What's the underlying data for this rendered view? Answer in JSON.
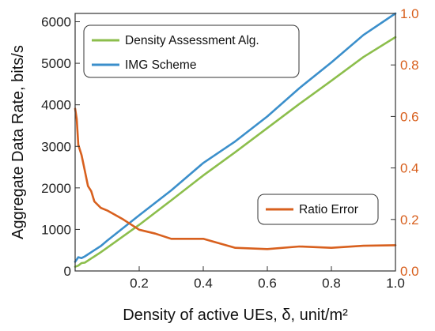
{
  "chart_data": {
    "type": "line",
    "xlabel": "Density of active UEs, δ, unit/m²",
    "ylabel": "Aggregate Data Rate, bits/s",
    "xlim": [
      0,
      1
    ],
    "ylim_left": [
      0,
      6200
    ],
    "ylim_right": [
      0,
      1.0
    ],
    "x_ticks": [
      "0.2",
      "0.4",
      "0.6",
      "0.8",
      "1.0"
    ],
    "y_left_ticks": [
      "0",
      "1000",
      "2000",
      "3000",
      "4000",
      "5000",
      "6000"
    ],
    "y_right_ticks": [
      "0.0",
      "0.2",
      "0.4",
      "0.6",
      "0.8",
      "1.0"
    ],
    "grid": false,
    "series": [
      {
        "name": "Density Assessment Alg.",
        "axis": "left",
        "color": "#8cbe4c",
        "x": [
          0.0,
          0.01,
          0.02,
          0.03,
          0.04,
          0.05,
          0.06,
          0.08,
          0.1,
          0.2,
          0.3,
          0.4,
          0.5,
          0.6,
          0.7,
          0.8,
          0.9,
          1.0
        ],
        "y": [
          100,
          130,
          190,
          200,
          250,
          300,
          350,
          450,
          560,
          1110,
          1700,
          2300,
          2860,
          3440,
          4020,
          4580,
          5150,
          5630
        ]
      },
      {
        "name": "IMG Scheme",
        "axis": "left",
        "color": "#3b8fcb",
        "x": [
          0.0,
          0.01,
          0.02,
          0.03,
          0.04,
          0.05,
          0.06,
          0.08,
          0.1,
          0.2,
          0.3,
          0.4,
          0.5,
          0.6,
          0.7,
          0.8,
          0.9,
          1.0
        ],
        "y": [
          220,
          330,
          310,
          350,
          400,
          450,
          500,
          600,
          730,
          1340,
          1940,
          2600,
          3120,
          3720,
          4400,
          5020,
          5680,
          6200
        ]
      },
      {
        "name": "Ratio Error",
        "axis": "right",
        "color": "#d8601e",
        "x": [
          0.0,
          0.005,
          0.01,
          0.02,
          0.03,
          0.04,
          0.05,
          0.06,
          0.08,
          0.1,
          0.15,
          0.2,
          0.25,
          0.3,
          0.35,
          0.4,
          0.5,
          0.6,
          0.7,
          0.8,
          0.9,
          1.0
        ],
        "y": [
          0.63,
          0.59,
          0.49,
          0.45,
          0.39,
          0.33,
          0.31,
          0.27,
          0.245,
          0.235,
          0.2,
          0.16,
          0.145,
          0.125,
          0.125,
          0.125,
          0.09,
          0.085,
          0.095,
          0.09,
          0.098,
          0.1
        ]
      }
    ],
    "legends": [
      {
        "items": [
          "Density Assessment Alg.",
          "IMG Scheme"
        ],
        "placement": "top-left"
      },
      {
        "items": [
          "Ratio Error"
        ],
        "placement": "bottom-right"
      }
    ],
    "colors": {
      "left_axis": "#222222",
      "right_axis": "#d8601e"
    }
  }
}
